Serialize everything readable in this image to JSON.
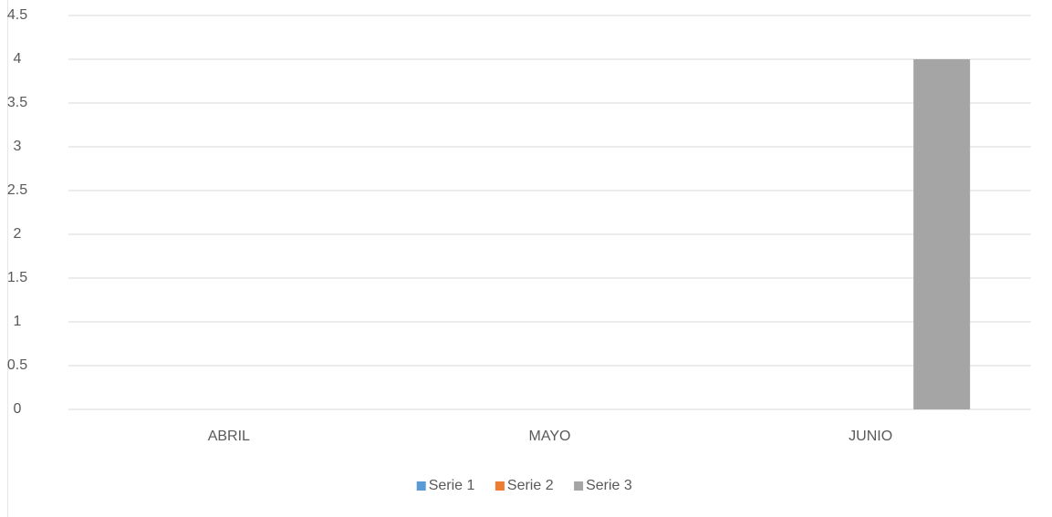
{
  "chart_data": {
    "type": "bar",
    "categories": [
      "ABRIL",
      "MAYO",
      "JUNIO"
    ],
    "series": [
      {
        "name": "Serie 1",
        "color": "#5b9bd5",
        "values": [
          0,
          0,
          0
        ]
      },
      {
        "name": "Serie 2",
        "color": "#ed7d31",
        "values": [
          0,
          0,
          0
        ]
      },
      {
        "name": "Serie 3",
        "color": "#a5a5a5",
        "values": [
          0,
          0,
          4
        ]
      }
    ],
    "ylim": [
      0,
      4.5
    ],
    "yticks": [
      0,
      0.5,
      1,
      1.5,
      2,
      2.5,
      3,
      3.5,
      4,
      4.5
    ],
    "grid": true,
    "legend": "bottom"
  }
}
